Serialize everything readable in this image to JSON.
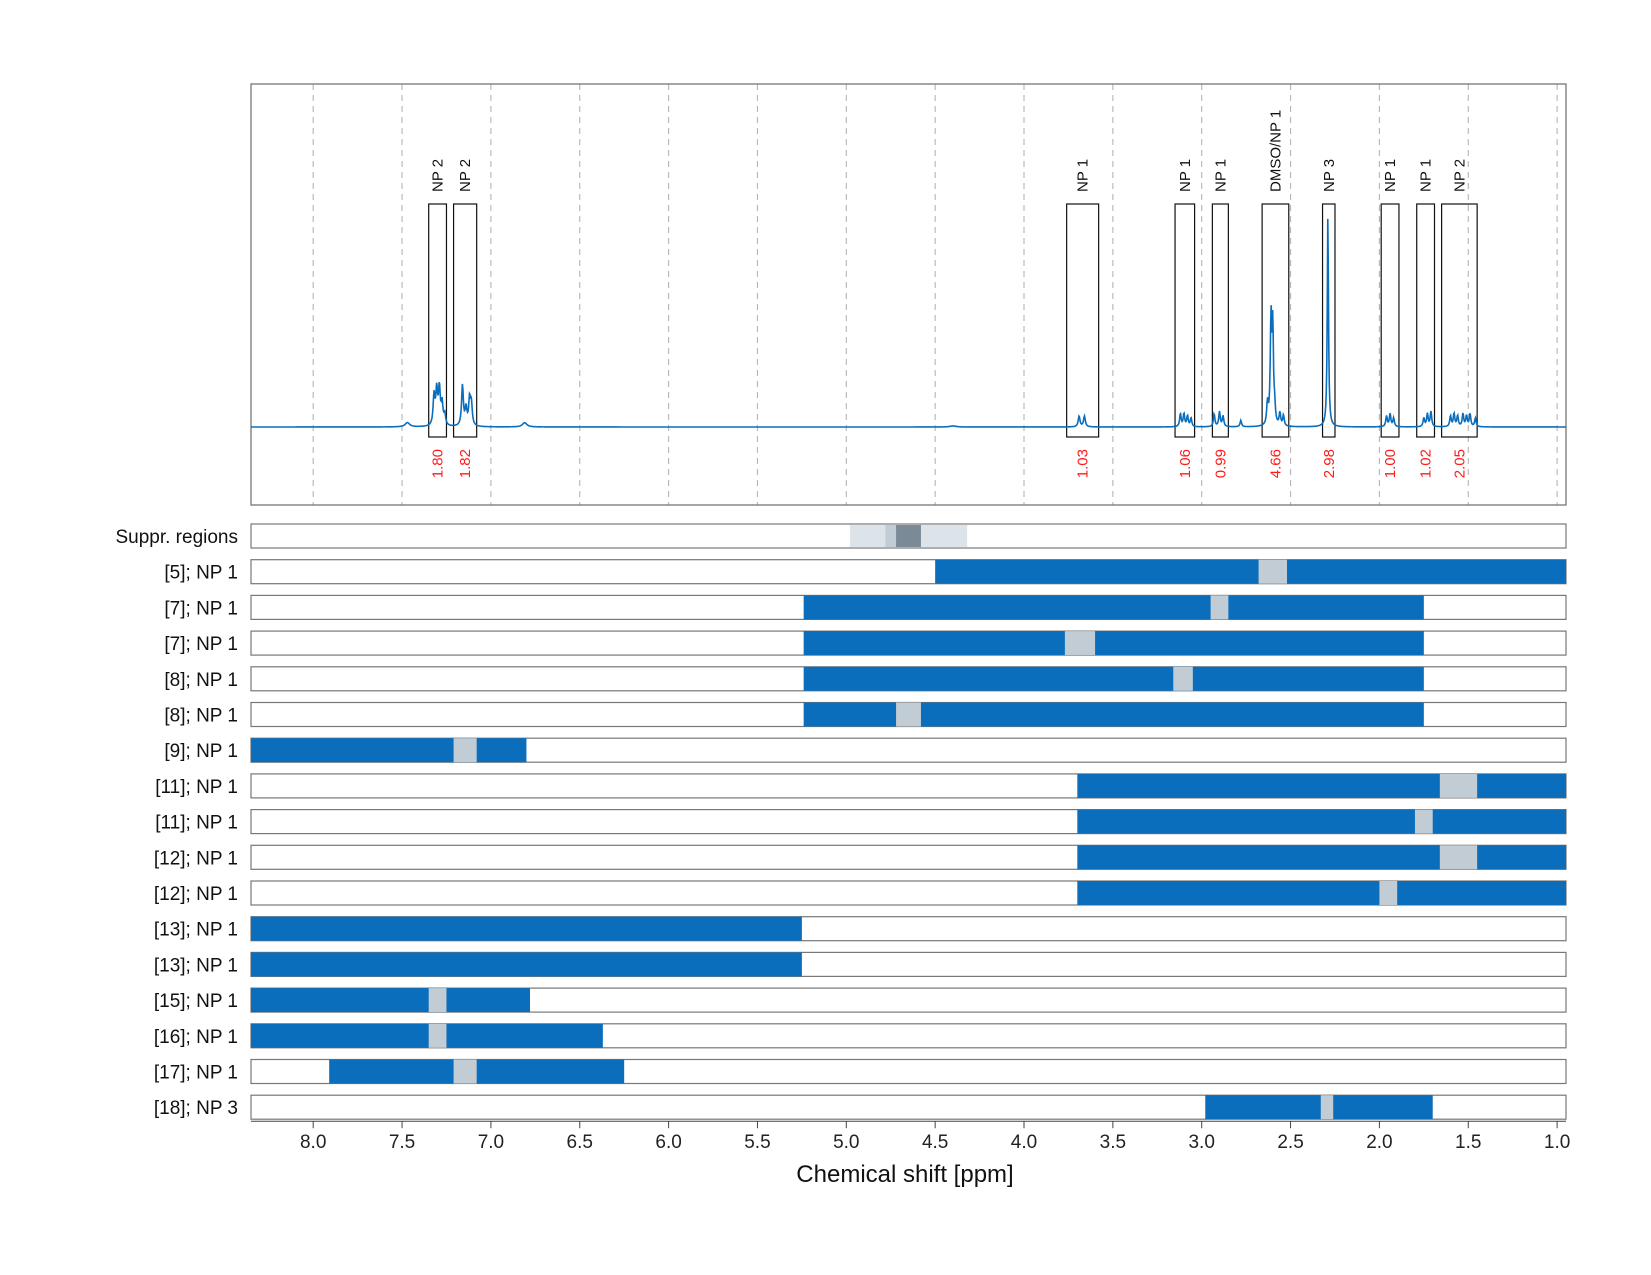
{
  "chart_data": {
    "type": "nmr-spectrum-with-range-bars",
    "xlabel": "Chemical shift [ppm]",
    "xlim": [
      8.35,
      0.95
    ],
    "x_ticks": [
      8.0,
      7.5,
      7.0,
      6.5,
      6.0,
      5.5,
      5.0,
      4.5,
      4.0,
      3.5,
      3.0,
      2.5,
      2.0,
      1.5,
      1.0
    ],
    "x_tick_labels": [
      "8.0",
      "7.5",
      "7.0",
      "6.5",
      "6.0",
      "5.5",
      "5.0",
      "4.5",
      "4.0",
      "3.5",
      "3.0",
      "2.5",
      "2.0",
      "1.5",
      "1.0"
    ],
    "grid": "vertical dashed",
    "colors": {
      "primary": "#0a6ebd",
      "gap": "#c2ccd4",
      "suppr_light": "#dce3e9",
      "suppr_mid": "#c2ccd4",
      "suppr_dark": "#7a8a97",
      "integral": "#ff1a1a"
    },
    "spectrum": {
      "baseline": 0.0,
      "peaks": [
        {
          "ppm": 7.47,
          "height": 0.02,
          "width": 0.015
        },
        {
          "ppm": 7.32,
          "height": 0.14,
          "width": 0.006
        },
        {
          "ppm": 7.305,
          "height": 0.16,
          "width": 0.006
        },
        {
          "ppm": 7.29,
          "height": 0.17,
          "width": 0.006
        },
        {
          "ppm": 7.275,
          "height": 0.1,
          "width": 0.006
        },
        {
          "ppm": 7.26,
          "height": 0.05,
          "width": 0.006
        },
        {
          "ppm": 7.16,
          "height": 0.19,
          "width": 0.006
        },
        {
          "ppm": 7.14,
          "height": 0.08,
          "width": 0.006
        },
        {
          "ppm": 7.12,
          "height": 0.12,
          "width": 0.006
        },
        {
          "ppm": 7.11,
          "height": 0.1,
          "width": 0.006
        },
        {
          "ppm": 6.81,
          "height": 0.02,
          "width": 0.015
        },
        {
          "ppm": 4.4,
          "height": 0.005,
          "width": 0.02
        },
        {
          "ppm": 3.69,
          "height": 0.05,
          "width": 0.006
        },
        {
          "ppm": 3.66,
          "height": 0.05,
          "width": 0.006
        },
        {
          "ppm": 3.12,
          "height": 0.06,
          "width": 0.005
        },
        {
          "ppm": 3.1,
          "height": 0.06,
          "width": 0.005
        },
        {
          "ppm": 3.08,
          "height": 0.05,
          "width": 0.005
        },
        {
          "ppm": 3.06,
          "height": 0.04,
          "width": 0.005
        },
        {
          "ppm": 2.93,
          "height": 0.06,
          "width": 0.005
        },
        {
          "ppm": 2.9,
          "height": 0.07,
          "width": 0.005
        },
        {
          "ppm": 2.88,
          "height": 0.05,
          "width": 0.005
        },
        {
          "ppm": 2.78,
          "height": 0.03,
          "width": 0.005
        },
        {
          "ppm": 2.63,
          "height": 0.1,
          "width": 0.005
        },
        {
          "ppm": 2.61,
          "height": 0.5,
          "width": 0.005
        },
        {
          "ppm": 2.6,
          "height": 0.43,
          "width": 0.004
        },
        {
          "ppm": 2.59,
          "height": 0.08,
          "width": 0.005
        },
        {
          "ppm": 2.56,
          "height": 0.06,
          "width": 0.005
        },
        {
          "ppm": 2.54,
          "height": 0.05,
          "width": 0.005
        },
        {
          "ppm": 2.29,
          "height": 0.99,
          "width": 0.004
        },
        {
          "ppm": 1.96,
          "height": 0.05,
          "width": 0.005
        },
        {
          "ppm": 1.94,
          "height": 0.06,
          "width": 0.005
        },
        {
          "ppm": 1.92,
          "height": 0.04,
          "width": 0.005
        },
        {
          "ppm": 1.75,
          "height": 0.04,
          "width": 0.005
        },
        {
          "ppm": 1.73,
          "height": 0.06,
          "width": 0.005
        },
        {
          "ppm": 1.71,
          "height": 0.07,
          "width": 0.005
        },
        {
          "ppm": 1.6,
          "height": 0.05,
          "width": 0.005
        },
        {
          "ppm": 1.58,
          "height": 0.06,
          "width": 0.005
        },
        {
          "ppm": 1.56,
          "height": 0.05,
          "width": 0.005
        },
        {
          "ppm": 1.53,
          "height": 0.06,
          "width": 0.005
        },
        {
          "ppm": 1.51,
          "height": 0.05,
          "width": 0.005
        },
        {
          "ppm": 1.49,
          "height": 0.06,
          "width": 0.005
        },
        {
          "ppm": 1.46,
          "height": 0.04,
          "width": 0.005
        }
      ]
    },
    "annotated_regions": [
      {
        "label": "NP 2",
        "from": 7.35,
        "to": 7.25,
        "integral": "1.80"
      },
      {
        "label": "NP 2",
        "from": 7.21,
        "to": 7.08,
        "integral": "1.82"
      },
      {
        "label": "NP 1",
        "from": 3.76,
        "to": 3.58,
        "integral": "1.03"
      },
      {
        "label": "NP 1",
        "from": 3.15,
        "to": 3.04,
        "integral": "1.06"
      },
      {
        "label": "NP 1",
        "from": 2.94,
        "to": 2.85,
        "integral": "0.99"
      },
      {
        "label": "DMSO/NP 1",
        "from": 2.66,
        "to": 2.51,
        "integral": "4.66"
      },
      {
        "label": "NP 3",
        "from": 2.32,
        "to": 2.25,
        "integral": "2.98"
      },
      {
        "label": "NP 1",
        "from": 1.99,
        "to": 1.89,
        "integral": "1.00"
      },
      {
        "label": "NP 1",
        "from": 1.79,
        "to": 1.69,
        "integral": "1.02"
      },
      {
        "label": "NP 2",
        "from": 1.65,
        "to": 1.45,
        "integral": "2.05"
      }
    ],
    "suppression_row": {
      "label": "Suppr. regions",
      "segments": [
        {
          "from": 4.98,
          "to": 4.32,
          "shade": "light"
        },
        {
          "from": 4.78,
          "to": 4.58,
          "shade": "mid"
        },
        {
          "from": 4.72,
          "to": 4.58,
          "shade": "dark"
        }
      ]
    },
    "rows": [
      {
        "label": "[5]; NP 1",
        "from": 4.5,
        "to": 0.95,
        "gap": [
          2.68,
          2.52
        ]
      },
      {
        "label": "[7]; NP 1",
        "from": 5.24,
        "to": 1.75,
        "gap": [
          2.95,
          2.85
        ]
      },
      {
        "label": "[7]; NP 1",
        "from": 5.24,
        "to": 1.75,
        "gap": [
          3.77,
          3.6
        ]
      },
      {
        "label": "[8]; NP 1",
        "from": 5.24,
        "to": 1.75,
        "gap": [
          3.16,
          3.05
        ]
      },
      {
        "label": "[8]; NP 1",
        "from": 5.24,
        "to": 1.75,
        "gap": [
          4.72,
          4.58
        ]
      },
      {
        "label": "[9]; NP 1",
        "from": 8.35,
        "to": 6.8,
        "gap": [
          7.21,
          7.08
        ]
      },
      {
        "label": "[11]; NP 1",
        "from": 3.7,
        "to": 0.95,
        "gap": [
          1.66,
          1.45
        ]
      },
      {
        "label": "[11]; NP 1",
        "from": 3.7,
        "to": 0.95,
        "gap": [
          1.8,
          1.7
        ]
      },
      {
        "label": "[12]; NP 1",
        "from": 3.7,
        "to": 0.95,
        "gap": [
          1.66,
          1.45
        ]
      },
      {
        "label": "[12]; NP 1",
        "from": 3.7,
        "to": 0.95,
        "gap": [
          2.0,
          1.9
        ]
      },
      {
        "label": "[13]; NP 1",
        "from": 8.35,
        "to": 5.25,
        "gap": null
      },
      {
        "label": "[13]; NP 1",
        "from": 8.35,
        "to": 5.25,
        "gap": null
      },
      {
        "label": "[15]; NP 1",
        "from": 8.35,
        "to": 6.78,
        "gap": [
          7.35,
          7.25
        ]
      },
      {
        "label": "[16]; NP 1",
        "from": 8.35,
        "to": 6.37,
        "gap": [
          7.35,
          7.25
        ]
      },
      {
        "label": "[17]; NP 1",
        "from": 7.91,
        "to": 6.25,
        "gap": [
          7.21,
          7.08
        ]
      },
      {
        "label": "[18]; NP 3",
        "from": 2.98,
        "to": 1.7,
        "gap": [
          2.33,
          2.26
        ]
      }
    ]
  }
}
